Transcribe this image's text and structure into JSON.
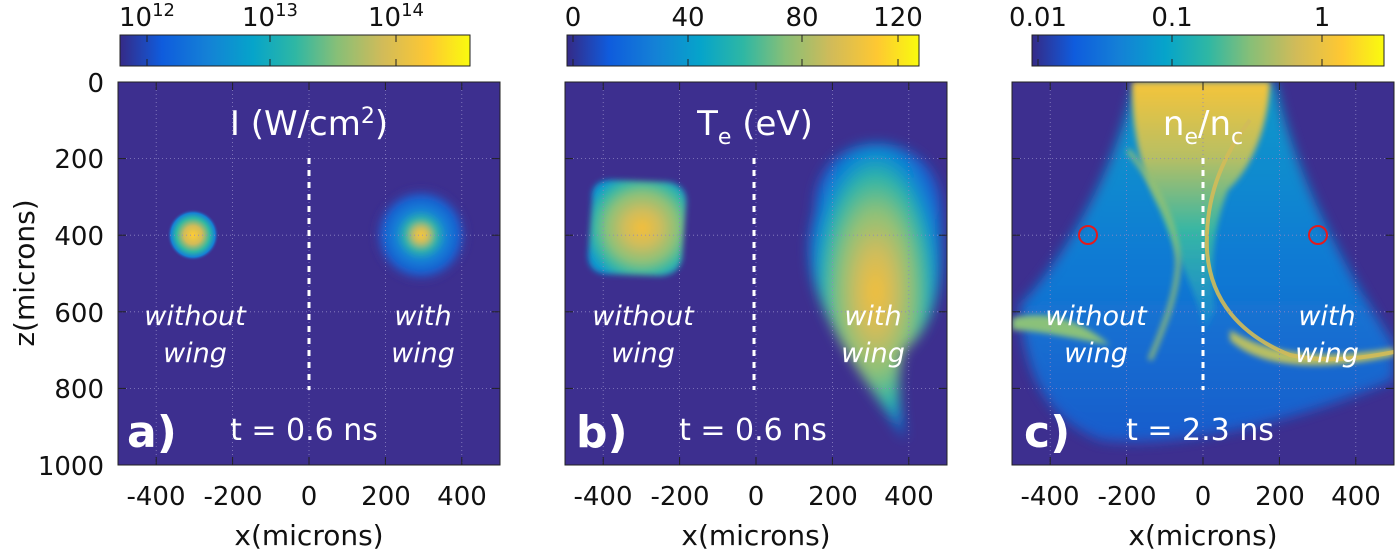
{
  "chart_data": [
    {
      "type": "heatmap",
      "panel_label": "a)",
      "title_base": "I (W/cm",
      "title_sup": "2",
      "title_end": ")",
      "time_label": "t = 0.6 ns",
      "xlabel": "x(microns)",
      "ylabel": "z(microns)",
      "xlim": [
        -500,
        500
      ],
      "ylim": [
        1000,
        0
      ],
      "x_ticks": [
        "-400",
        "-200",
        "0",
        "200",
        "400"
      ],
      "y_ticks": [
        "0",
        "200",
        "400",
        "600",
        "800",
        "1000"
      ],
      "colorbar": {
        "scale": "log",
        "range": [
          300000000000.0,
          500000000000000.0
        ],
        "ticks": [
          {
            "base": "10",
            "exp": "12"
          },
          {
            "base": "10",
            "exp": "13"
          },
          {
            "base": "10",
            "exp": "14"
          }
        ]
      },
      "region_labels": [
        {
          "line1": "without",
          "line2": "wing"
        },
        {
          "line1": "with",
          "line2": "wing"
        }
      ],
      "features": [
        {
          "x": -300,
          "z": 400,
          "radius": 45,
          "peak": "1e14",
          "label": "without wing spot"
        },
        {
          "x": 290,
          "z": 400,
          "radius": 130,
          "peak": "1e14",
          "label": "with wing spot"
        }
      ],
      "divider_x": 0,
      "divider_z": [
        200,
        800
      ]
    },
    {
      "type": "heatmap",
      "panel_label": "b)",
      "title_base": "T",
      "title_sub": "e",
      "title_end": " (eV)",
      "time_label": "t = 0.6 ns",
      "xlabel": "x(microns)",
      "xlim": [
        -500,
        500
      ],
      "ylim": [
        1000,
        0
      ],
      "x_ticks": [
        "-400",
        "-200",
        "0",
        "200",
        "400"
      ],
      "colorbar": {
        "scale": "linear",
        "range": [
          0,
          120
        ],
        "ticks": [
          "0",
          "40",
          "80",
          "120"
        ]
      },
      "region_labels": [
        {
          "line1": "without",
          "line2": "wing"
        },
        {
          "line1": "with",
          "line2": "wing"
        }
      ],
      "features": [
        {
          "x": -310,
          "z": 400,
          "half_width": 120,
          "peak": 95,
          "label": "without wing hot region"
        },
        {
          "x": 290,
          "z": 400,
          "half_width": 190,
          "peak": 100,
          "label": "with wing hot region"
        }
      ],
      "divider_x": 0,
      "divider_z": [
        200,
        800
      ]
    },
    {
      "type": "heatmap",
      "panel_label": "c)",
      "title_base": "n",
      "title_sub": "e",
      "title_mid": "/n",
      "title_sub2": "c",
      "time_label": "t = 2.3 ns",
      "xlabel": "x(microns)",
      "xlim": [
        -500,
        500
      ],
      "ylim": [
        1000,
        0
      ],
      "x_ticks": [
        "-400",
        "-200",
        "0",
        "200",
        "400"
      ],
      "colorbar": {
        "scale": "log",
        "range": [
          0.01,
          2.5
        ],
        "ticks": [
          "0.01",
          "0.1",
          "1"
        ]
      },
      "region_labels": [
        {
          "line1": "without",
          "line2": "wing"
        },
        {
          "line1": "with",
          "line2": "wing"
        }
      ],
      "markers": [
        {
          "x": -300,
          "z": 400,
          "color": "#e41a1c"
        },
        {
          "x": 300,
          "z": 400,
          "color": "#e41a1c"
        }
      ],
      "divider_x": 0,
      "divider_z": [
        200,
        800
      ]
    }
  ],
  "colors": {
    "background_low": "#3d2f8f",
    "accent_marker": "#e41a1c",
    "divider": "#ffffff"
  }
}
